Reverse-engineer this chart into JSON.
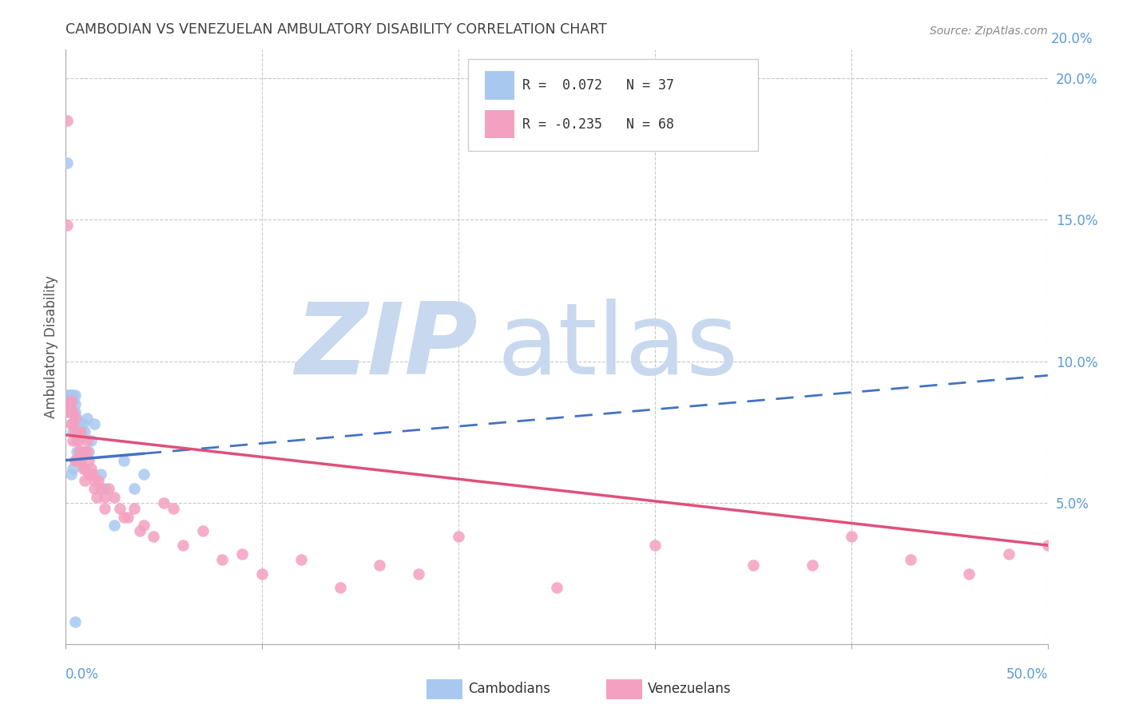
{
  "title": "CAMBODIAN VS VENEZUELAN AMBULATORY DISABILITY CORRELATION CHART",
  "source": "Source: ZipAtlas.com",
  "ylabel": "Ambulatory Disability",
  "color_cambodian": "#A8C8F0",
  "color_venezuelan": "#F4A0C0",
  "color_trendline_cambodian": "#4472C4",
  "color_trendline_venezuelan": "#E0507A",
  "color_axis_labels": "#5B9BD5",
  "color_title": "#404040",
  "watermark_zip_color": "#C8D8EE",
  "watermark_atlas_color": "#C8D8EE",
  "R_cam": 0.072,
  "N_cam": 37,
  "R_ven": -0.235,
  "N_ven": 68,
  "xlim": [
    0.0,
    0.5
  ],
  "ylim": [
    0.0,
    0.21
  ],
  "xticks": [
    0.0,
    0.1,
    0.2,
    0.3,
    0.4,
    0.5
  ],
  "yticks_right": [
    0.05,
    0.1,
    0.15,
    0.2
  ],
  "grid_color": "#BBBBBB",
  "fig_bg": "#FFFFFF",
  "cambodian_x": [
    0.001,
    0.001,
    0.002,
    0.002,
    0.002,
    0.003,
    0.003,
    0.003,
    0.003,
    0.004,
    0.004,
    0.004,
    0.004,
    0.005,
    0.005,
    0.005,
    0.005,
    0.006,
    0.006,
    0.006,
    0.007,
    0.007,
    0.008,
    0.008,
    0.009,
    0.01,
    0.011,
    0.012,
    0.013,
    0.015,
    0.018,
    0.02,
    0.025,
    0.03,
    0.035,
    0.04,
    0.005
  ],
  "cambodian_y": [
    0.17,
    0.088,
    0.088,
    0.085,
    0.082,
    0.088,
    0.085,
    0.082,
    0.06,
    0.088,
    0.086,
    0.075,
    0.062,
    0.088,
    0.085,
    0.082,
    0.065,
    0.08,
    0.075,
    0.068,
    0.078,
    0.065,
    0.075,
    0.068,
    0.078,
    0.075,
    0.08,
    0.068,
    0.072,
    0.078,
    0.06,
    0.055,
    0.042,
    0.065,
    0.055,
    0.06,
    0.008
  ],
  "venezuelan_x": [
    0.001,
    0.001,
    0.002,
    0.002,
    0.003,
    0.003,
    0.003,
    0.004,
    0.004,
    0.004,
    0.005,
    0.005,
    0.005,
    0.006,
    0.006,
    0.006,
    0.007,
    0.007,
    0.008,
    0.008,
    0.009,
    0.009,
    0.01,
    0.01,
    0.01,
    0.011,
    0.011,
    0.012,
    0.012,
    0.013,
    0.014,
    0.015,
    0.015,
    0.016,
    0.017,
    0.018,
    0.02,
    0.02,
    0.022,
    0.025,
    0.028,
    0.03,
    0.032,
    0.035,
    0.038,
    0.04,
    0.045,
    0.05,
    0.055,
    0.06,
    0.07,
    0.08,
    0.09,
    0.1,
    0.12,
    0.14,
    0.16,
    0.18,
    0.2,
    0.25,
    0.3,
    0.35,
    0.38,
    0.4,
    0.43,
    0.46,
    0.48,
    0.5
  ],
  "venezuelan_y": [
    0.185,
    0.148,
    0.082,
    0.085,
    0.086,
    0.083,
    0.078,
    0.082,
    0.078,
    0.072,
    0.08,
    0.075,
    0.065,
    0.075,
    0.072,
    0.065,
    0.072,
    0.068,
    0.075,
    0.065,
    0.068,
    0.062,
    0.068,
    0.062,
    0.058,
    0.072,
    0.068,
    0.065,
    0.06,
    0.062,
    0.06,
    0.058,
    0.055,
    0.052,
    0.058,
    0.055,
    0.052,
    0.048,
    0.055,
    0.052,
    0.048,
    0.045,
    0.045,
    0.048,
    0.04,
    0.042,
    0.038,
    0.05,
    0.048,
    0.035,
    0.04,
    0.03,
    0.032,
    0.025,
    0.03,
    0.02,
    0.028,
    0.025,
    0.038,
    0.02,
    0.035,
    0.028,
    0.028,
    0.038,
    0.03,
    0.025,
    0.032,
    0.035
  ],
  "cam_trendline_x0": 0.0,
  "cam_trendline_x_solid_end": 0.04,
  "cam_trendline_x_dash_end": 0.5,
  "cam_trendline_y0": 0.065,
  "cam_trendline_y_end": 0.095,
  "ven_trendline_x0": 0.0,
  "ven_trendline_x_end": 0.5,
  "ven_trendline_y0": 0.074,
  "ven_trendline_y_end": 0.035
}
